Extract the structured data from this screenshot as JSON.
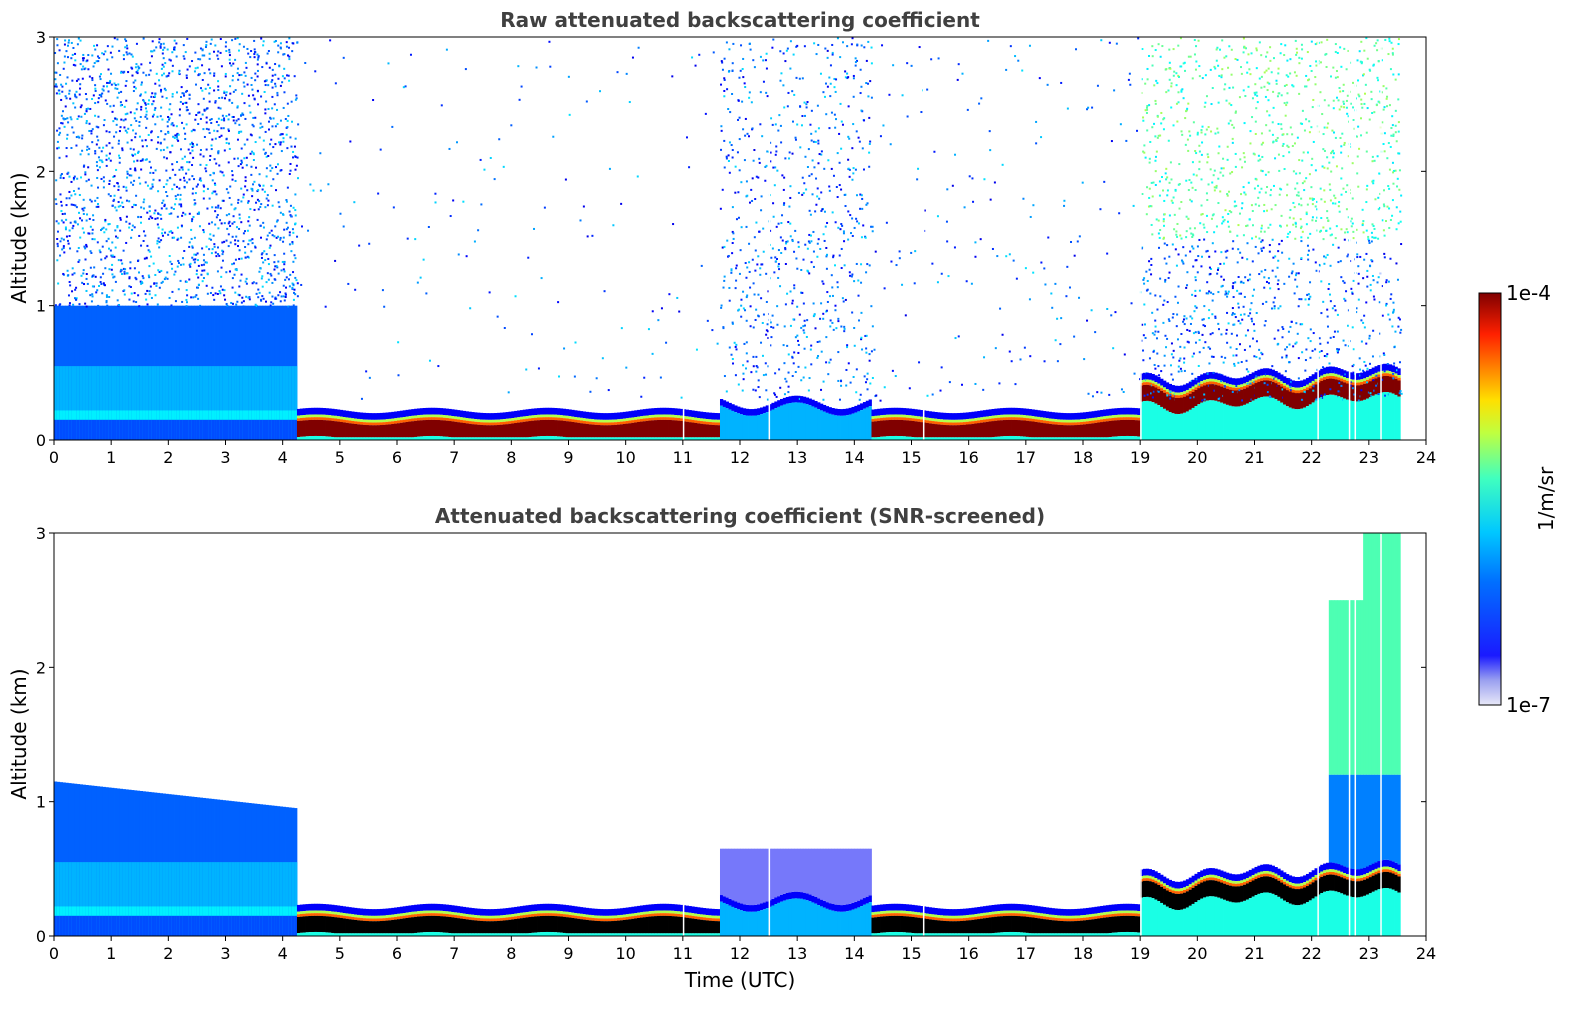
{
  "chart_data": [
    {
      "type": "heatmap",
      "title": "Raw attenuated backscattering coefficient",
      "xlabel": "",
      "ylabel": "Altitude (km)",
      "xlim": [
        0,
        24
      ],
      "ylim": [
        0,
        3
      ],
      "xticks": [
        "0",
        "1",
        "2",
        "3",
        "4",
        "5",
        "6",
        "7",
        "8",
        "9",
        "10",
        "11",
        "12",
        "13",
        "14",
        "15",
        "16",
        "17",
        "18",
        "19",
        "20",
        "21",
        "22",
        "23",
        "24"
      ],
      "yticks": [
        "0",
        "1",
        "2",
        "3"
      ],
      "screened": false,
      "regions": [
        {
          "t0": 0.0,
          "t1": 4.25,
          "top_km": 3.0,
          "noise_density": 0.55,
          "boundary_layer_top_km": 1.0
        },
        {
          "t0": 4.25,
          "t1": 11.65,
          "top_km": 3.0,
          "noise_density": 0.02,
          "boundary_layer_top_km": 0.22
        },
        {
          "t0": 11.65,
          "t1": 14.3,
          "top_km": 3.0,
          "noise_density": 0.35,
          "boundary_layer_top_km": 0.3
        },
        {
          "t0": 14.3,
          "t1": 19.0,
          "top_km": 3.0,
          "noise_density": 0.05,
          "boundary_layer_top_km": 0.22
        },
        {
          "t0": 19.0,
          "t1": 23.55,
          "top_km": 3.0,
          "noise_density": 0.45,
          "boundary_layer_top_km": 0.45
        }
      ],
      "gaps_utc": [
        11.0,
        12.5,
        15.2,
        19.0,
        22.1,
        22.65,
        22.75,
        23.2
      ]
    },
    {
      "type": "heatmap",
      "title": "Attenuated backscattering coefficient (SNR-screened)",
      "xlabel": "Time (UTC)",
      "ylabel": "Altitude (km)",
      "xlim": [
        0,
        24
      ],
      "ylim": [
        0,
        3
      ],
      "xticks": [
        "0",
        "1",
        "2",
        "3",
        "4",
        "5",
        "6",
        "7",
        "8",
        "9",
        "10",
        "11",
        "12",
        "13",
        "14",
        "15",
        "16",
        "17",
        "18",
        "19",
        "20",
        "21",
        "22",
        "23",
        "24"
      ],
      "yticks": [
        "0",
        "1",
        "2",
        "3"
      ],
      "screened": true,
      "regions": [
        {
          "t0": 0.0,
          "t1": 4.25,
          "top_km": 1.25,
          "noise_density": 0.0,
          "boundary_layer_top_km": 1.0
        },
        {
          "t0": 4.25,
          "t1": 11.65,
          "top_km": 0.25,
          "noise_density": 0.0,
          "boundary_layer_top_km": 0.22
        },
        {
          "t0": 11.65,
          "t1": 14.3,
          "top_km": 0.7,
          "noise_density": 0.0,
          "boundary_layer_top_km": 0.3
        },
        {
          "t0": 14.3,
          "t1": 19.0,
          "top_km": 0.3,
          "noise_density": 0.0,
          "boundary_layer_top_km": 0.22
        },
        {
          "t0": 19.0,
          "t1": 23.55,
          "top_km": 0.5,
          "noise_density": 0.0,
          "boundary_layer_top_km": 0.45
        }
      ],
      "gaps_utc": [
        11.0,
        12.5,
        15.2,
        19.0,
        22.1,
        22.65,
        22.75,
        23.2
      ]
    }
  ],
  "colorbar": {
    "label": "1/m/sr",
    "max_label": "1e-4",
    "min_label": "1e-7",
    "vmin": 1e-07,
    "vmax": 0.0001,
    "scale": "log",
    "colormap": "jet"
  }
}
